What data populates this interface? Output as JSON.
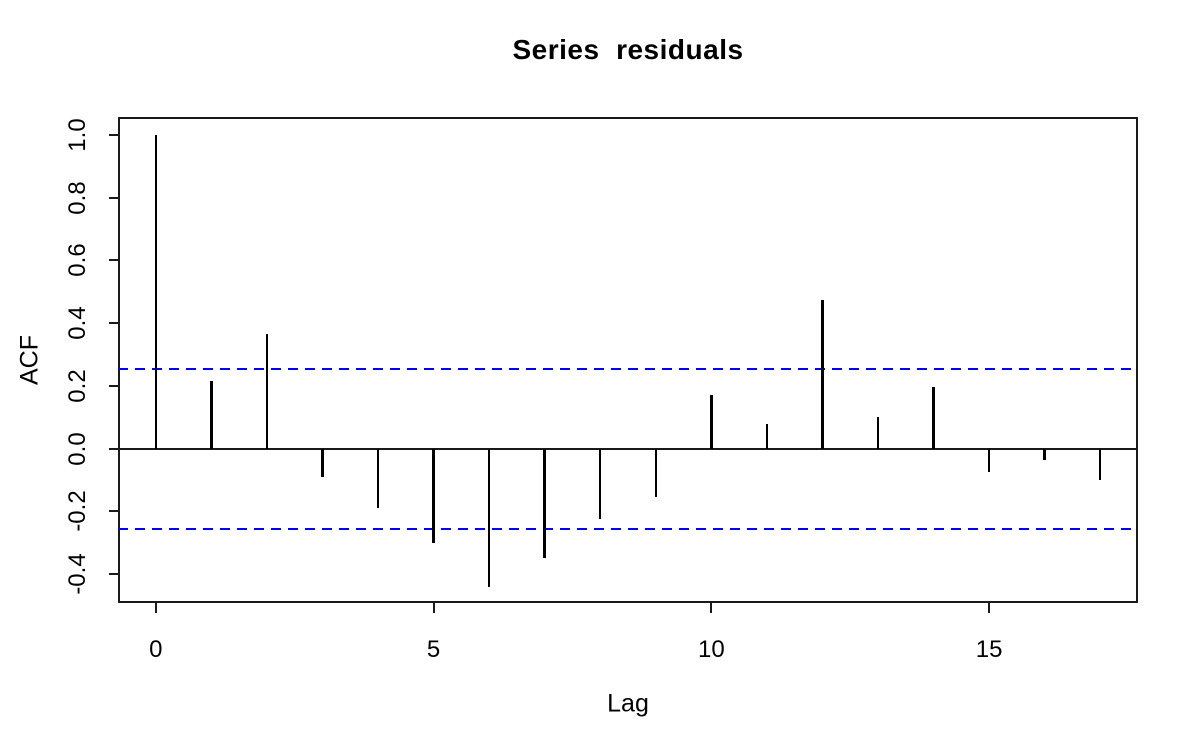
{
  "title": "Series  residuals",
  "chart_data": {
    "type": "bar",
    "subtype": "acf-stick-plot",
    "title": "Series  residuals",
    "xlabel": "Lag",
    "ylabel": "ACF",
    "x": [
      0,
      1,
      2,
      3,
      4,
      5,
      6,
      7,
      8,
      9,
      10,
      11,
      12,
      13,
      14,
      15,
      16,
      17
    ],
    "values": [
      1.0,
      0.215,
      0.365,
      -0.09,
      -0.19,
      -0.3,
      -0.44,
      -0.35,
      -0.225,
      -0.155,
      0.17,
      0.08,
      0.475,
      0.1,
      0.195,
      -0.075,
      -0.035,
      -0.1
    ],
    "confidence_bands": {
      "upper": 0.255,
      "lower": -0.255,
      "line_style": "dashed",
      "color": "#0000ee"
    },
    "zero_line": 0,
    "xlim": [
      -0.68,
      17.68
    ],
    "ylim": [
      -0.492,
      1.057
    ],
    "x_ticks": {
      "values": [
        0,
        5,
        10,
        15
      ],
      "labels": [
        "0",
        "5",
        "10",
        "15"
      ]
    },
    "y_ticks": {
      "values": [
        1.0,
        0.8,
        0.6,
        0.4,
        0.2,
        0.0,
        -0.2,
        -0.4
      ],
      "labels": [
        "1.0",
        "0.8",
        "0.6",
        "0.4",
        "0.2",
        "0.0",
        "-0.2",
        "-0.4"
      ]
    },
    "grid": false,
    "legend": null,
    "colors": {
      "bar": "#000000",
      "axis": "#1a1a1a",
      "background": "#ffffff",
      "ci": "#0000ee"
    }
  }
}
